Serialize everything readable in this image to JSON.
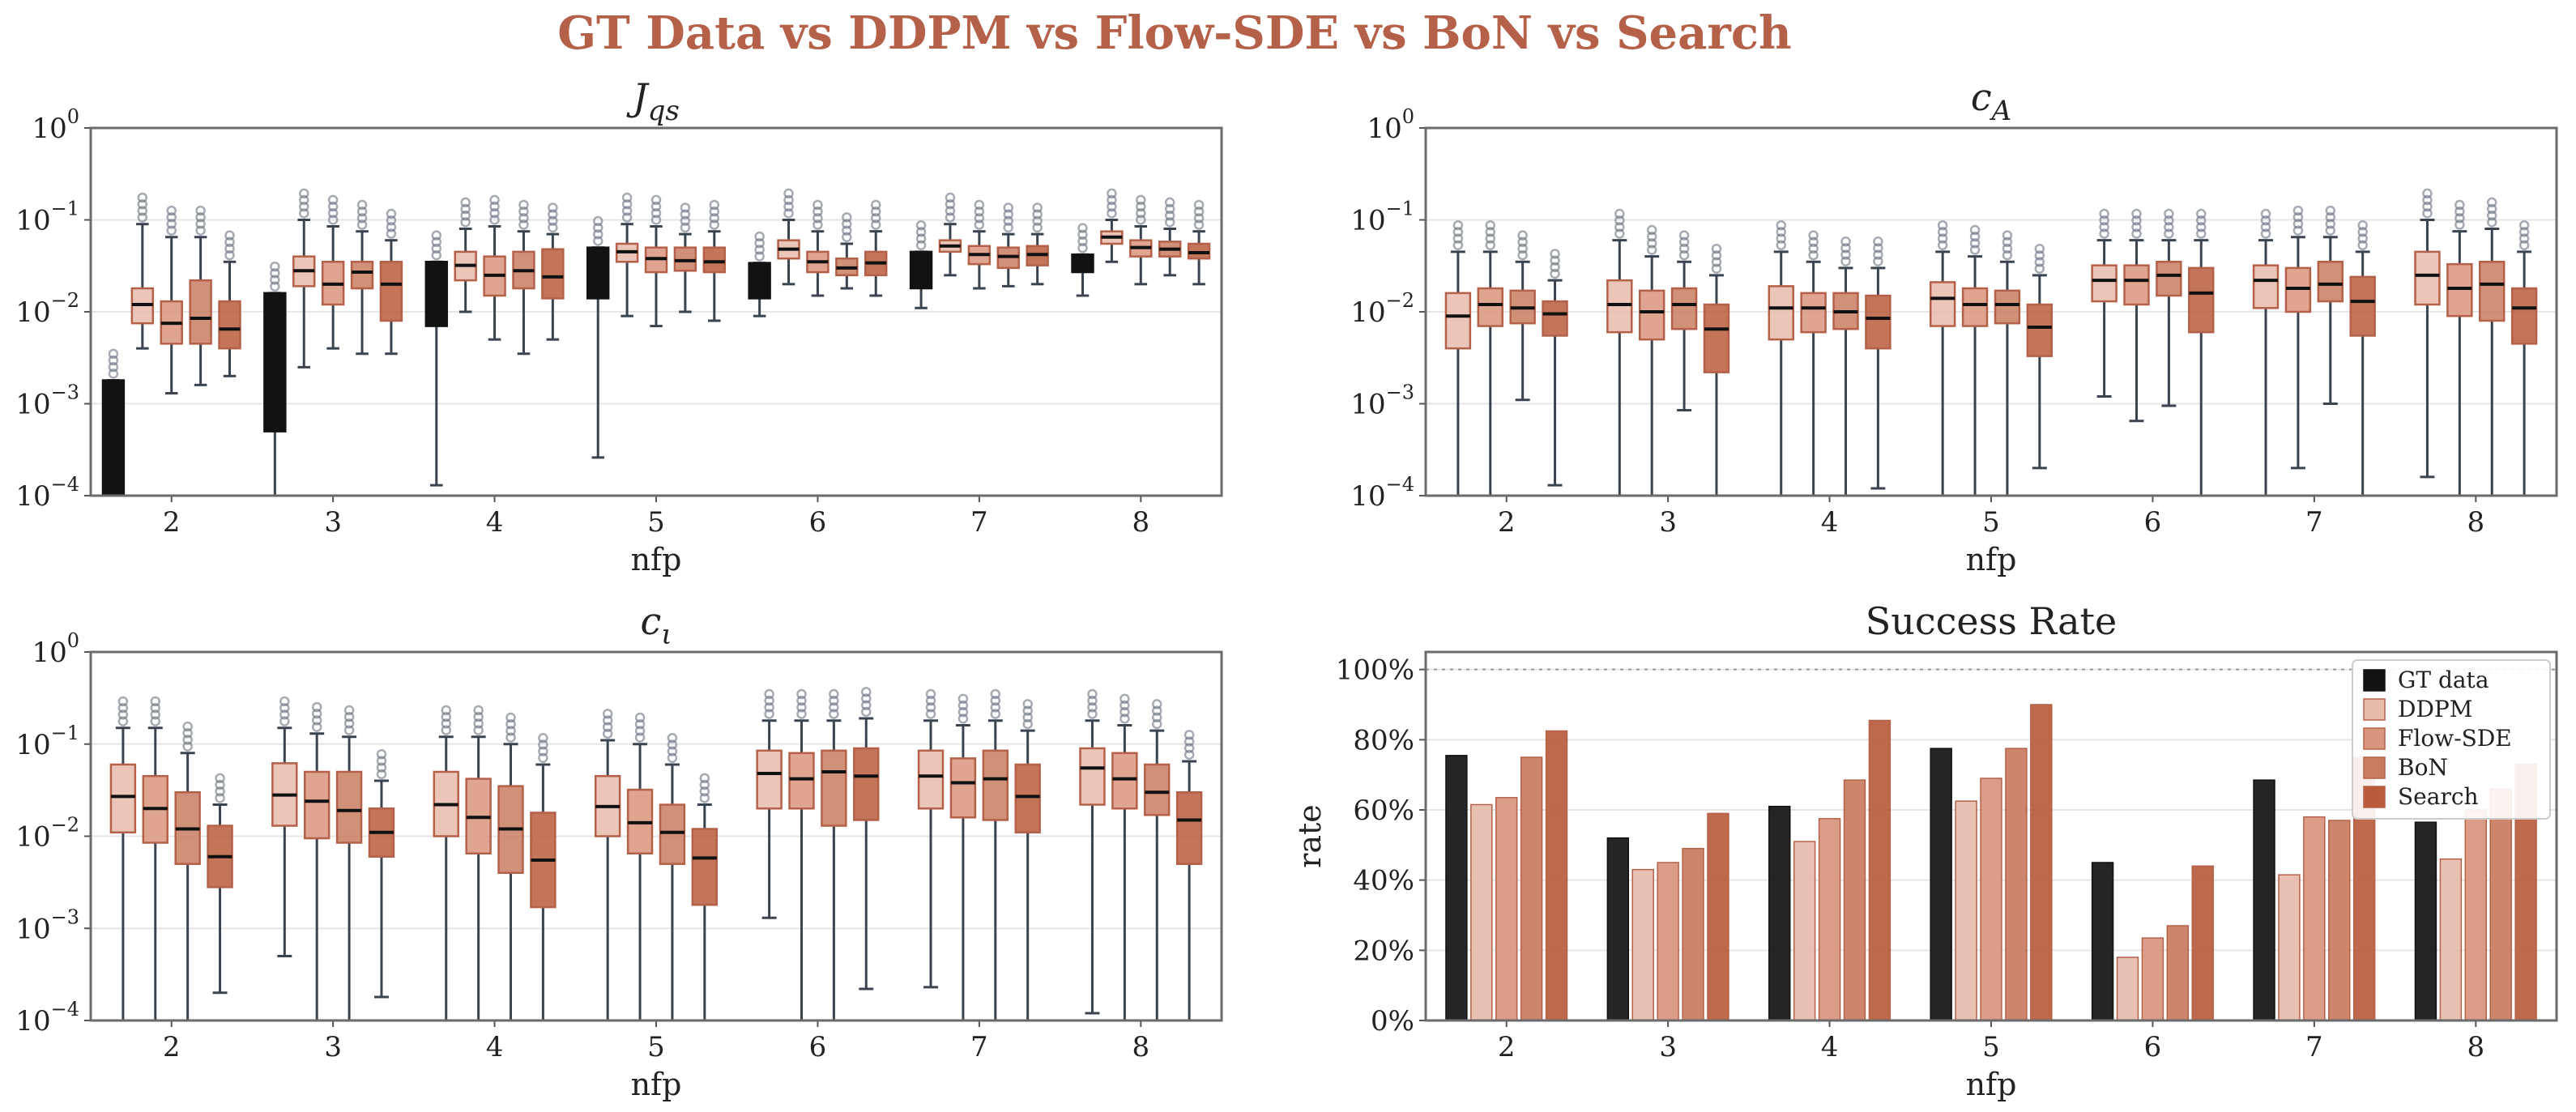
{
  "title": "GT Data vs DDPM vs Flow-SDE vs BoN vs Search",
  "colors": {
    "gt": "#121212",
    "ddpm": "#e7bcab",
    "flow_sde": "#d9957e",
    "bon": "#c97c60",
    "search": "#b85c3c",
    "whisker": "#3a4450",
    "title": "#b5614a"
  },
  "chart_data": [
    {
      "type": "box",
      "title": "J_qs",
      "xlabel": "nfp",
      "ylabel": "",
      "yscale": "log",
      "ylim": [
        0.0001,
        1
      ],
      "yticks": [
        "10^-4",
        "10^-3",
        "10^-2",
        "10^-1",
        "10^0"
      ],
      "categories": [
        "2",
        "3",
        "4",
        "5",
        "6",
        "7",
        "8"
      ],
      "series": [
        {
          "key": "gt",
          "boxes": [
            {
              "lo": 0.0001,
              "q1": 0.0001,
              "med": 0.0001,
              "q3": 0.0018,
              "hi": 0.0018
            },
            {
              "lo": 0.0001,
              "q1": 0.0005,
              "med": 0.0005,
              "q3": 0.016,
              "hi": 0.016
            },
            {
              "lo": 0.00013,
              "q1": 0.007,
              "med": 0.007,
              "q3": 0.035,
              "hi": 0.035
            },
            {
              "lo": 0.00026,
              "q1": 0.014,
              "med": 0.014,
              "q3": 0.05,
              "hi": 0.05
            },
            {
              "lo": 0.009,
              "q1": 0.014,
              "med": 0.014,
              "q3": 0.034,
              "hi": 0.034
            },
            {
              "lo": 0.011,
              "q1": 0.018,
              "med": 0.018,
              "q3": 0.045,
              "hi": 0.045
            },
            {
              "lo": 0.015,
              "q1": 0.027,
              "med": 0.027,
              "q3": 0.042,
              "hi": 0.042
            }
          ]
        },
        {
          "key": "ddpm",
          "boxes": [
            {
              "lo": 0.004,
              "q1": 0.0075,
              "med": 0.012,
              "q3": 0.018,
              "hi": 0.09
            },
            {
              "lo": 0.0025,
              "q1": 0.019,
              "med": 0.028,
              "q3": 0.04,
              "hi": 0.1
            },
            {
              "lo": 0.01,
              "q1": 0.022,
              "med": 0.032,
              "q3": 0.045,
              "hi": 0.08
            },
            {
              "lo": 0.009,
              "q1": 0.035,
              "med": 0.045,
              "q3": 0.055,
              "hi": 0.09
            },
            {
              "lo": 0.02,
              "q1": 0.038,
              "med": 0.048,
              "q3": 0.06,
              "hi": 0.1
            },
            {
              "lo": 0.025,
              "q1": 0.045,
              "med": 0.052,
              "q3": 0.06,
              "hi": 0.09
            },
            {
              "lo": 0.035,
              "q1": 0.055,
              "med": 0.065,
              "q3": 0.075,
              "hi": 0.1
            }
          ]
        },
        {
          "key": "flow_sde",
          "boxes": [
            {
              "lo": 0.0013,
              "q1": 0.0045,
              "med": 0.0075,
              "q3": 0.013,
              "hi": 0.065
            },
            {
              "lo": 0.004,
              "q1": 0.012,
              "med": 0.02,
              "q3": 0.035,
              "hi": 0.085
            },
            {
              "lo": 0.005,
              "q1": 0.015,
              "med": 0.025,
              "q3": 0.04,
              "hi": 0.085
            },
            {
              "lo": 0.007,
              "q1": 0.027,
              "med": 0.038,
              "q3": 0.05,
              "hi": 0.085
            },
            {
              "lo": 0.015,
              "q1": 0.027,
              "med": 0.035,
              "q3": 0.045,
              "hi": 0.075
            },
            {
              "lo": 0.018,
              "q1": 0.033,
              "med": 0.042,
              "q3": 0.052,
              "hi": 0.075
            },
            {
              "lo": 0.02,
              "q1": 0.04,
              "med": 0.05,
              "q3": 0.06,
              "hi": 0.085
            }
          ]
        },
        {
          "key": "bon",
          "boxes": [
            {
              "lo": 0.0016,
              "q1": 0.0045,
              "med": 0.0085,
              "q3": 0.022,
              "hi": 0.065
            },
            {
              "lo": 0.0035,
              "q1": 0.018,
              "med": 0.027,
              "q3": 0.035,
              "hi": 0.075
            },
            {
              "lo": 0.0035,
              "q1": 0.018,
              "med": 0.028,
              "q3": 0.045,
              "hi": 0.075
            },
            {
              "lo": 0.01,
              "q1": 0.028,
              "med": 0.036,
              "q3": 0.05,
              "hi": 0.07
            },
            {
              "lo": 0.018,
              "q1": 0.025,
              "med": 0.03,
              "q3": 0.038,
              "hi": 0.055
            },
            {
              "lo": 0.019,
              "q1": 0.03,
              "med": 0.04,
              "q3": 0.05,
              "hi": 0.07
            },
            {
              "lo": 0.025,
              "q1": 0.04,
              "med": 0.048,
              "q3": 0.058,
              "hi": 0.08
            }
          ]
        },
        {
          "key": "search",
          "boxes": [
            {
              "lo": 0.002,
              "q1": 0.004,
              "med": 0.0065,
              "q3": 0.013,
              "hi": 0.035
            },
            {
              "lo": 0.0035,
              "q1": 0.008,
              "med": 0.02,
              "q3": 0.035,
              "hi": 0.06
            },
            {
              "lo": 0.005,
              "q1": 0.014,
              "med": 0.024,
              "q3": 0.048,
              "hi": 0.07
            },
            {
              "lo": 0.008,
              "q1": 0.027,
              "med": 0.035,
              "q3": 0.05,
              "hi": 0.075
            },
            {
              "lo": 0.015,
              "q1": 0.025,
              "med": 0.034,
              "q3": 0.045,
              "hi": 0.075
            },
            {
              "lo": 0.02,
              "q1": 0.032,
              "med": 0.042,
              "q3": 0.052,
              "hi": 0.07
            },
            {
              "lo": 0.02,
              "q1": 0.038,
              "med": 0.044,
              "q3": 0.055,
              "hi": 0.075
            }
          ]
        }
      ]
    },
    {
      "type": "box",
      "title": "c_A",
      "xlabel": "nfp",
      "ylabel": "",
      "yscale": "log",
      "ylim": [
        0.0001,
        1
      ],
      "yticks": [
        "10^-4",
        "10^-3",
        "10^-2",
        "10^-1",
        "10^0"
      ],
      "categories": [
        "2",
        "3",
        "4",
        "5",
        "6",
        "7",
        "8"
      ],
      "series": [
        {
          "key": "ddpm",
          "boxes": [
            {
              "lo": 0.0001,
              "q1": 0.004,
              "med": 0.009,
              "q3": 0.016,
              "hi": 0.045
            },
            {
              "lo": 0.0001,
              "q1": 0.006,
              "med": 0.012,
              "q3": 0.022,
              "hi": 0.06
            },
            {
              "lo": 0.0001,
              "q1": 0.005,
              "med": 0.011,
              "q3": 0.019,
              "hi": 0.045
            },
            {
              "lo": 0.0001,
              "q1": 0.007,
              "med": 0.014,
              "q3": 0.021,
              "hi": 0.045
            },
            {
              "lo": 0.0012,
              "q1": 0.013,
              "med": 0.022,
              "q3": 0.032,
              "hi": 0.06
            },
            {
              "lo": 0.0001,
              "q1": 0.011,
              "med": 0.022,
              "q3": 0.032,
              "hi": 0.06
            },
            {
              "lo": 0.00016,
              "q1": 0.012,
              "med": 0.025,
              "q3": 0.045,
              "hi": 0.1
            }
          ]
        },
        {
          "key": "flow_sde",
          "boxes": [
            {
              "lo": 0.0001,
              "q1": 0.007,
              "med": 0.012,
              "q3": 0.018,
              "hi": 0.045
            },
            {
              "lo": 0.0001,
              "q1": 0.005,
              "med": 0.01,
              "q3": 0.017,
              "hi": 0.04
            },
            {
              "lo": 0.0001,
              "q1": 0.006,
              "med": 0.011,
              "q3": 0.016,
              "hi": 0.035
            },
            {
              "lo": 0.0001,
              "q1": 0.007,
              "med": 0.012,
              "q3": 0.018,
              "hi": 0.04
            },
            {
              "lo": 0.00065,
              "q1": 0.012,
              "med": 0.022,
              "q3": 0.032,
              "hi": 0.06
            },
            {
              "lo": 0.0002,
              "q1": 0.01,
              "med": 0.018,
              "q3": 0.03,
              "hi": 0.065
            },
            {
              "lo": 0.0001,
              "q1": 0.009,
              "med": 0.018,
              "q3": 0.033,
              "hi": 0.075
            }
          ]
        },
        {
          "key": "bon",
          "boxes": [
            {
              "lo": 0.0011,
              "q1": 0.0075,
              "med": 0.011,
              "q3": 0.017,
              "hi": 0.035
            },
            {
              "lo": 0.00085,
              "q1": 0.0065,
              "med": 0.012,
              "q3": 0.018,
              "hi": 0.035
            },
            {
              "lo": 0.0001,
              "q1": 0.0065,
              "med": 0.01,
              "q3": 0.016,
              "hi": 0.03
            },
            {
              "lo": 0.0001,
              "q1": 0.0075,
              "med": 0.012,
              "q3": 0.017,
              "hi": 0.035
            },
            {
              "lo": 0.00095,
              "q1": 0.015,
              "med": 0.025,
              "q3": 0.035,
              "hi": 0.06
            },
            {
              "lo": 0.001,
              "q1": 0.013,
              "med": 0.02,
              "q3": 0.035,
              "hi": 0.065
            },
            {
              "lo": 0.0001,
              "q1": 0.008,
              "med": 0.02,
              "q3": 0.035,
              "hi": 0.08
            }
          ]
        },
        {
          "key": "search",
          "boxes": [
            {
              "lo": 0.00013,
              "q1": 0.0055,
              "med": 0.0095,
              "q3": 0.013,
              "hi": 0.022
            },
            {
              "lo": 0.0001,
              "q1": 0.0022,
              "med": 0.0065,
              "q3": 0.012,
              "hi": 0.025
            },
            {
              "lo": 0.00012,
              "q1": 0.004,
              "med": 0.0085,
              "q3": 0.015,
              "hi": 0.03
            },
            {
              "lo": 0.0002,
              "q1": 0.0033,
              "med": 0.0068,
              "q3": 0.012,
              "hi": 0.025
            },
            {
              "lo": 0.0001,
              "q1": 0.006,
              "med": 0.016,
              "q3": 0.03,
              "hi": 0.06
            },
            {
              "lo": 0.0001,
              "q1": 0.0055,
              "med": 0.013,
              "q3": 0.024,
              "hi": 0.045
            },
            {
              "lo": 0.0001,
              "q1": 0.0045,
              "med": 0.011,
              "q3": 0.018,
              "hi": 0.045
            }
          ]
        }
      ]
    },
    {
      "type": "box",
      "title": "c_ι",
      "xlabel": "nfp",
      "ylabel": "",
      "yscale": "log",
      "ylim": [
        0.0001,
        1
      ],
      "yticks": [
        "10^-4",
        "10^-3",
        "10^-2",
        "10^-1",
        "10^0"
      ],
      "categories": [
        "2",
        "3",
        "4",
        "5",
        "6",
        "7",
        "8"
      ],
      "series": [
        {
          "key": "ddpm",
          "boxes": [
            {
              "lo": 0.0001,
              "q1": 0.011,
              "med": 0.027,
              "q3": 0.06,
              "hi": 0.15
            },
            {
              "lo": 0.0005,
              "q1": 0.013,
              "med": 0.028,
              "q3": 0.062,
              "hi": 0.15
            },
            {
              "lo": 0.0001,
              "q1": 0.01,
              "med": 0.022,
              "q3": 0.05,
              "hi": 0.12
            },
            {
              "lo": 0.0001,
              "q1": 0.01,
              "med": 0.021,
              "q3": 0.045,
              "hi": 0.11
            },
            {
              "lo": 0.0013,
              "q1": 0.02,
              "med": 0.048,
              "q3": 0.085,
              "hi": 0.18
            },
            {
              "lo": 0.00023,
              "q1": 0.02,
              "med": 0.045,
              "q3": 0.085,
              "hi": 0.18
            },
            {
              "lo": 0.00012,
              "q1": 0.022,
              "med": 0.055,
              "q3": 0.09,
              "hi": 0.18
            }
          ]
        },
        {
          "key": "flow_sde",
          "boxes": [
            {
              "lo": 0.0001,
              "q1": 0.0085,
              "med": 0.02,
              "q3": 0.045,
              "hi": 0.15
            },
            {
              "lo": 0.0001,
              "q1": 0.0095,
              "med": 0.024,
              "q3": 0.05,
              "hi": 0.13
            },
            {
              "lo": 0.0001,
              "q1": 0.0065,
              "med": 0.016,
              "q3": 0.042,
              "hi": 0.12
            },
            {
              "lo": 0.0001,
              "q1": 0.0065,
              "med": 0.014,
              "q3": 0.032,
              "hi": 0.1
            },
            {
              "lo": 0.0001,
              "q1": 0.02,
              "med": 0.042,
              "q3": 0.08,
              "hi": 0.18
            },
            {
              "lo": 0.0001,
              "q1": 0.016,
              "med": 0.038,
              "q3": 0.07,
              "hi": 0.16
            },
            {
              "lo": 0.0001,
              "q1": 0.02,
              "med": 0.042,
              "q3": 0.08,
              "hi": 0.16
            }
          ]
        },
        {
          "key": "bon",
          "boxes": [
            {
              "lo": 0.0001,
              "q1": 0.005,
              "med": 0.012,
              "q3": 0.03,
              "hi": 0.08
            },
            {
              "lo": 0.0001,
              "q1": 0.0085,
              "med": 0.019,
              "q3": 0.05,
              "hi": 0.12
            },
            {
              "lo": 0.0001,
              "q1": 0.004,
              "med": 0.012,
              "q3": 0.035,
              "hi": 0.1
            },
            {
              "lo": 0.0001,
              "q1": 0.005,
              "med": 0.011,
              "q3": 0.022,
              "hi": 0.06
            },
            {
              "lo": 0.0001,
              "q1": 0.013,
              "med": 0.05,
              "q3": 0.085,
              "hi": 0.18
            },
            {
              "lo": 0.0001,
              "q1": 0.015,
              "med": 0.042,
              "q3": 0.085,
              "hi": 0.18
            },
            {
              "lo": 0.0001,
              "q1": 0.017,
              "med": 0.03,
              "q3": 0.06,
              "hi": 0.14
            }
          ]
        },
        {
          "key": "search",
          "boxes": [
            {
              "lo": 0.0002,
              "q1": 0.0028,
              "med": 0.006,
              "q3": 0.013,
              "hi": 0.022
            },
            {
              "lo": 0.00018,
              "q1": 0.006,
              "med": 0.011,
              "q3": 0.02,
              "hi": 0.04
            },
            {
              "lo": 0.0001,
              "q1": 0.0017,
              "med": 0.0055,
              "q3": 0.018,
              "hi": 0.06
            },
            {
              "lo": 0.0001,
              "q1": 0.0018,
              "med": 0.0058,
              "q3": 0.012,
              "hi": 0.022
            },
            {
              "lo": 0.00022,
              "q1": 0.015,
              "med": 0.045,
              "q3": 0.09,
              "hi": 0.19
            },
            {
              "lo": 0.0001,
              "q1": 0.011,
              "med": 0.027,
              "q3": 0.06,
              "hi": 0.14
            },
            {
              "lo": 0.0001,
              "q1": 0.005,
              "med": 0.015,
              "q3": 0.03,
              "hi": 0.065
            }
          ]
        }
      ]
    },
    {
      "type": "bar",
      "title": "Success Rate",
      "xlabel": "nfp",
      "ylabel": "rate",
      "ylim": [
        0,
        1.05
      ],
      "yticks": [
        "0%",
        "20%",
        "40%",
        "60%",
        "80%",
        "100%"
      ],
      "reference_line": 1.0,
      "categories": [
        "2",
        "3",
        "4",
        "5",
        "6",
        "7",
        "8"
      ],
      "legend_position": "top-right",
      "series": [
        {
          "key": "gt",
          "name": "GT data",
          "values": [
            0.755,
            0.52,
            0.61,
            0.775,
            0.45,
            0.685,
            0.565
          ]
        },
        {
          "key": "ddpm",
          "name": "DDPM",
          "values": [
            0.615,
            0.43,
            0.51,
            0.625,
            0.18,
            0.415,
            0.46
          ]
        },
        {
          "key": "flow_sde",
          "name": "Flow-SDE",
          "values": [
            0.635,
            0.45,
            0.575,
            0.69,
            0.235,
            0.58,
            0.6
          ]
        },
        {
          "key": "bon",
          "name": "BoN",
          "values": [
            0.75,
            0.49,
            0.685,
            0.775,
            0.27,
            0.57,
            0.66
          ]
        },
        {
          "key": "search",
          "name": "Search",
          "values": [
            0.825,
            0.59,
            0.855,
            0.9,
            0.44,
            0.75,
            0.73
          ]
        }
      ]
    }
  ]
}
